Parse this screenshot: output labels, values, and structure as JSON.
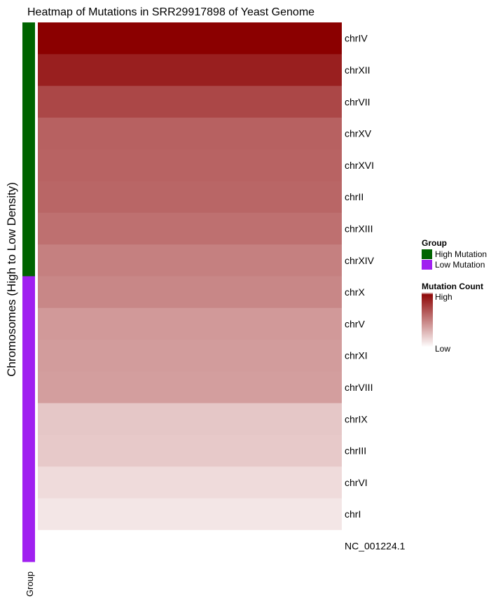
{
  "chart_data": {
    "type": "heatmap",
    "title": "Heatmap of Mutations in SRR29917898 of Yeast Genome",
    "ylabel": "Chromosomes (High to Low Density)",
    "annotation_label": "Group",
    "rows": [
      {
        "name": "chrIV",
        "value": 1.0,
        "group": "High Mutation"
      },
      {
        "name": "chrXII",
        "value": 0.88,
        "group": "High Mutation"
      },
      {
        "name": "chrVII",
        "value": 0.72,
        "group": "High Mutation"
      },
      {
        "name": "chrXV",
        "value": 0.62,
        "group": "High Mutation"
      },
      {
        "name": "chrXVI",
        "value": 0.61,
        "group": "High Mutation"
      },
      {
        "name": "chrII",
        "value": 0.6,
        "group": "High Mutation"
      },
      {
        "name": "chrXIII",
        "value": 0.56,
        "group": "High Mutation"
      },
      {
        "name": "chrXIV",
        "value": 0.5,
        "group": "High Mutation"
      },
      {
        "name": "chrX",
        "value": 0.47,
        "group": "Low Mutation"
      },
      {
        "name": "chrV",
        "value": 0.4,
        "group": "Low Mutation"
      },
      {
        "name": "chrXI",
        "value": 0.39,
        "group": "Low Mutation"
      },
      {
        "name": "chrVIII",
        "value": 0.38,
        "group": "Low Mutation"
      },
      {
        "name": "chrIX",
        "value": 0.22,
        "group": "Low Mutation"
      },
      {
        "name": "chrIII",
        "value": 0.21,
        "group": "Low Mutation"
      },
      {
        "name": "chrVI",
        "value": 0.14,
        "group": "Low Mutation"
      },
      {
        "name": "chrI",
        "value": 0.1,
        "group": "Low Mutation"
      },
      {
        "name": "NC_001224.1",
        "value": 0.0,
        "group": "Low Mutation"
      }
    ],
    "legend_group": {
      "title": "Group",
      "items": [
        {
          "label": "High Mutation",
          "color": "#006400"
        },
        {
          "label": "Low Mutation",
          "color": "#A020F0"
        }
      ]
    },
    "legend_scale": {
      "title": "Mutation Count",
      "high_label": "High",
      "low_label": "Low",
      "high_color": "#8B0000",
      "low_color": "#FFFFFF"
    }
  }
}
